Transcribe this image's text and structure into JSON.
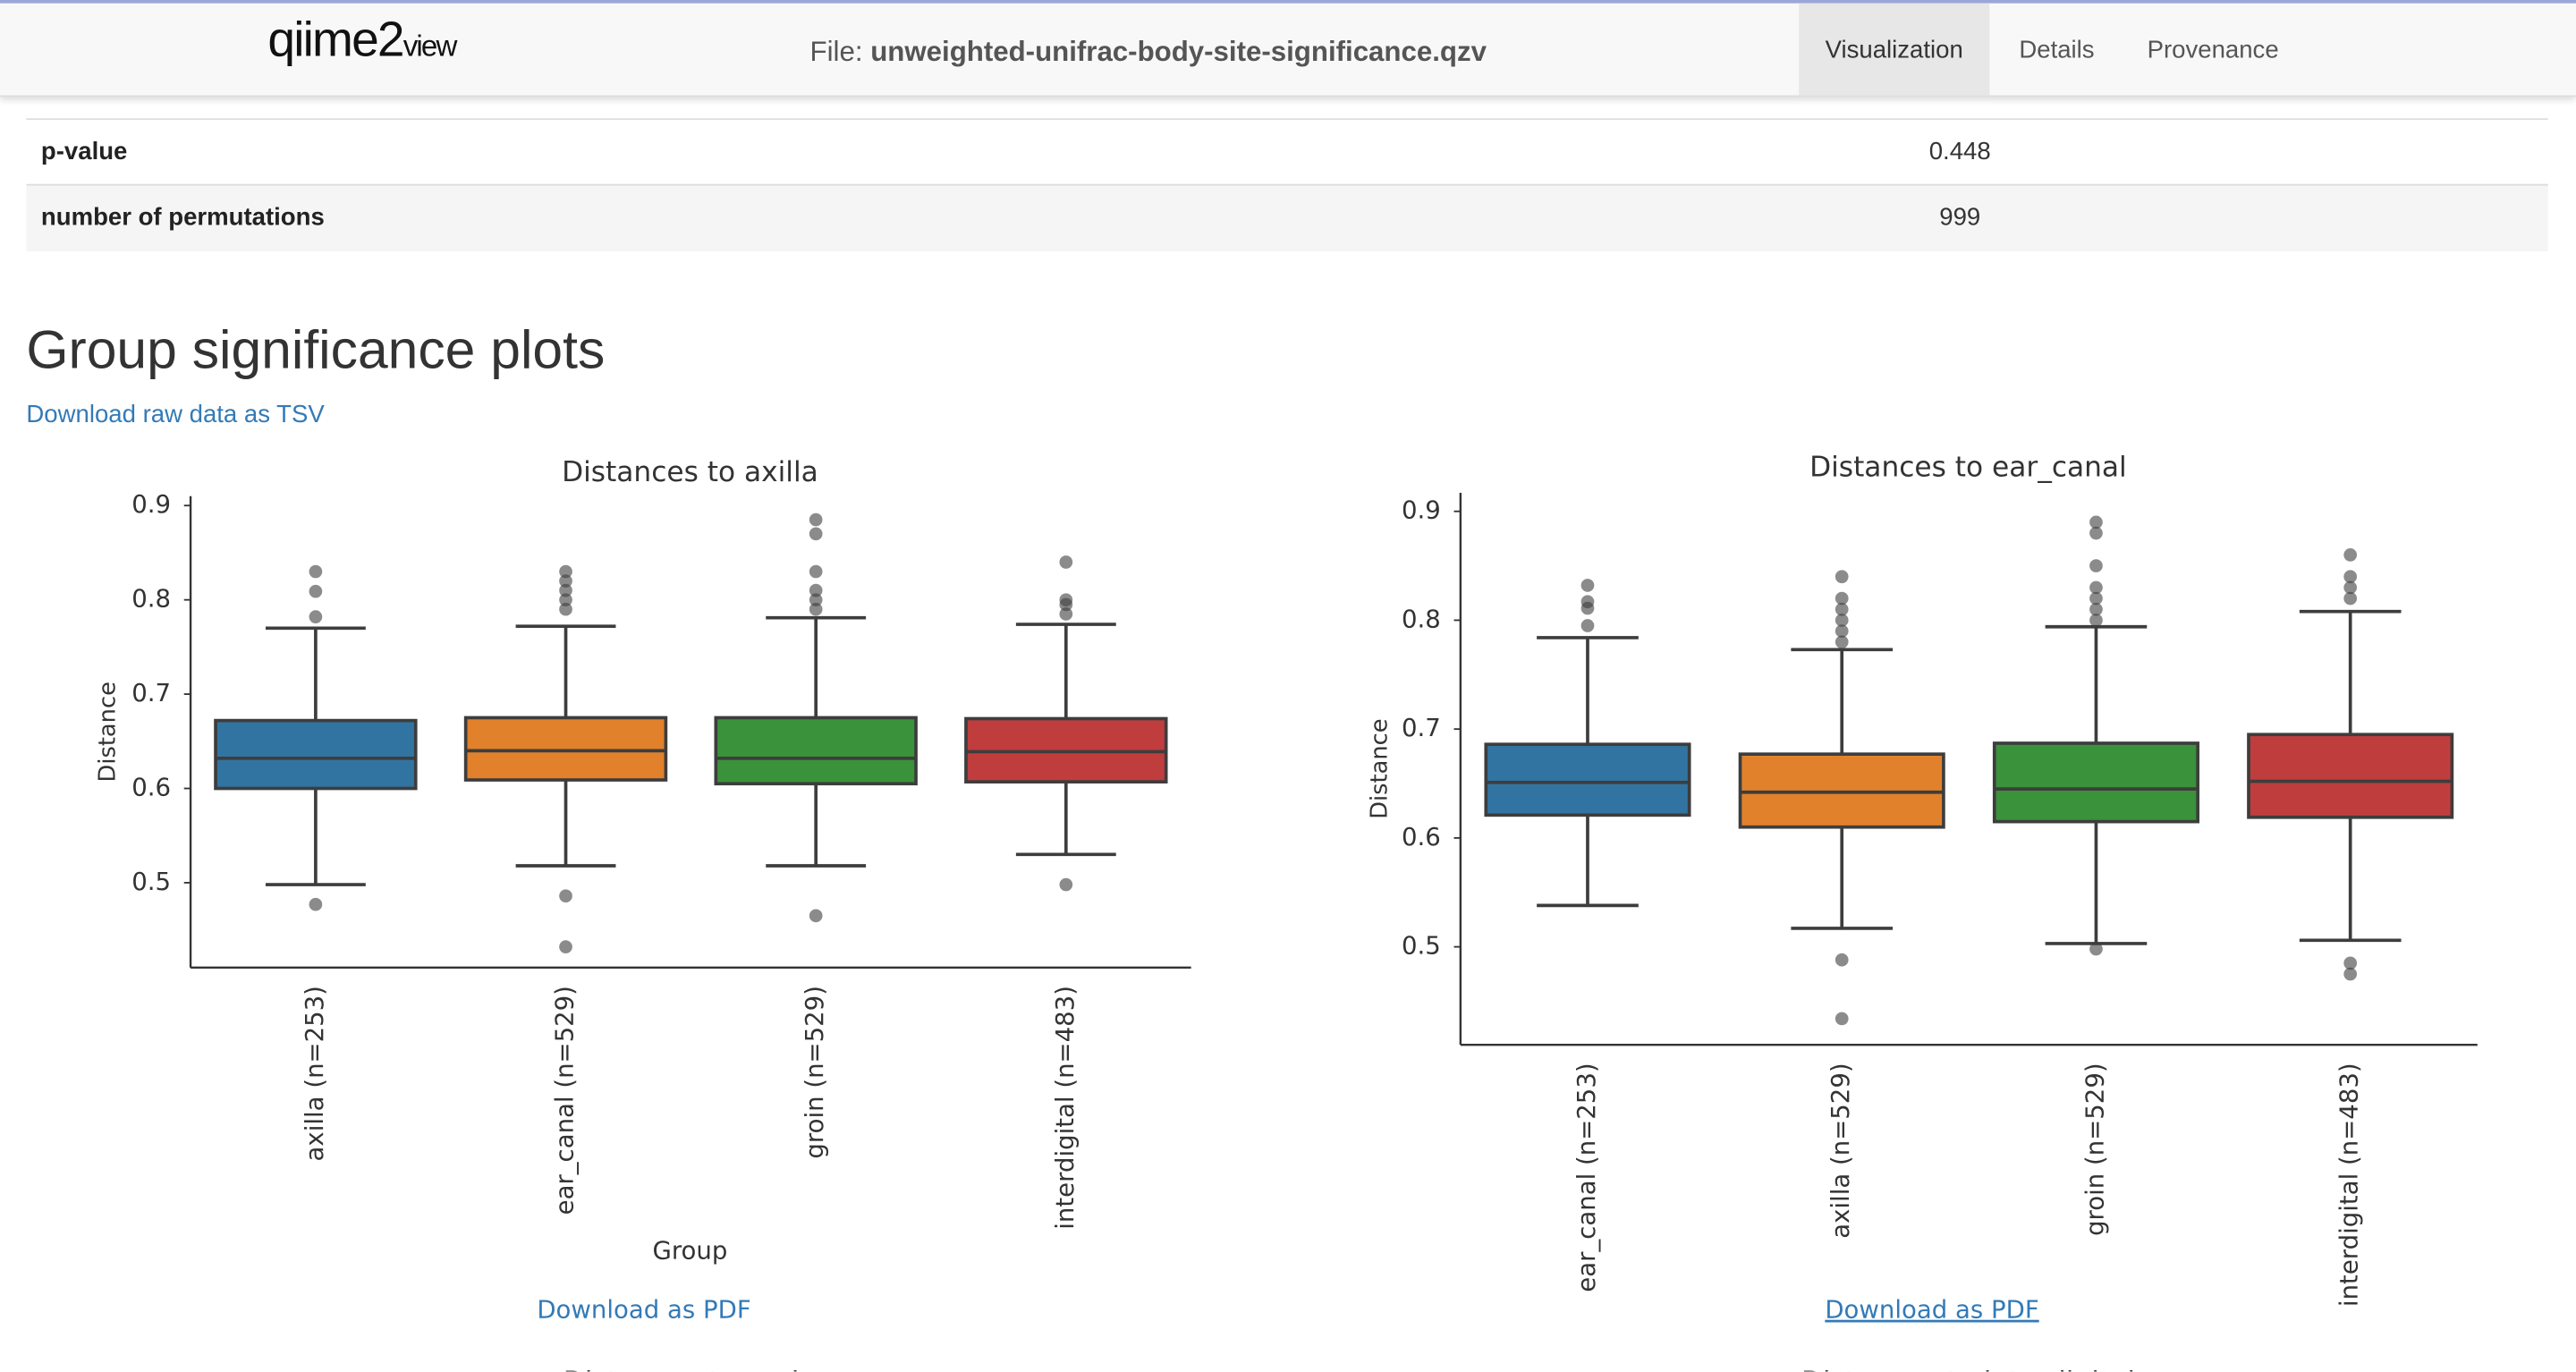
{
  "header": {
    "logo": "qiime2",
    "logo_suffix": "view",
    "file_label": "File:",
    "file_name": "unweighted-unifrac-body-site-significance.qzv",
    "tabs": [
      "Visualization",
      "Details",
      "Provenance"
    ]
  },
  "table": {
    "rows": [
      [
        "p-value",
        "0.448"
      ],
      [
        "number of permutations",
        "999"
      ]
    ]
  },
  "section": {
    "title": "Group significance plots",
    "download": "Download raw data as TSV"
  },
  "pdf_links": [
    "Download as PDF",
    "Download as PDF"
  ],
  "next_titles": [
    "Distances to groin",
    "Distances to interdigital"
  ],
  "chart_data": [
    {
      "type": "box",
      "title": "Distances to axilla",
      "ylabel": "Distance",
      "xlabel": "Group",
      "categories": [
        "axilla (n=253)",
        "ear_canal (n=529)",
        "groin (n=529)",
        "interdigital (n=483)"
      ],
      "colors": [
        "#3274a1",
        "#e1812c",
        "#3a923a",
        "#c03d3e"
      ],
      "whislo": [
        0.498,
        0.518,
        0.518,
        0.53
      ],
      "q1": [
        0.6,
        0.609,
        0.605,
        0.607
      ],
      "median": [
        0.632,
        0.64,
        0.632,
        0.639
      ],
      "q3": [
        0.672,
        0.675,
        0.675,
        0.674
      ],
      "whishi": [
        0.77,
        0.772,
        0.781,
        0.774
      ],
      "fliers": [
        [
          0.477,
          0.782,
          0.809,
          0.83
        ],
        [
          0.486,
          0.432,
          0.79,
          0.8,
          0.81,
          0.82,
          0.83
        ],
        [
          0.465,
          0.79,
          0.8,
          0.81,
          0.83,
          0.87,
          0.885
        ],
        [
          0.498,
          0.785,
          0.795,
          0.8,
          0.84
        ]
      ],
      "ylim": [
        0.41,
        0.91
      ],
      "yticks": [
        0.5,
        0.6,
        0.7,
        0.8,
        0.9
      ]
    },
    {
      "type": "box",
      "title": "Distances to ear_canal",
      "ylabel": "Distance",
      "categories": [
        "ear_canal (n=253)",
        "axilla (n=529)",
        "groin (n=529)",
        "interdigital (n=483)"
      ],
      "colors": [
        "#3274a1",
        "#e1812c",
        "#3a923a",
        "#c03d3e"
      ],
      "whislo": [
        0.538,
        0.517,
        0.503,
        0.506
      ],
      "q1": [
        0.621,
        0.61,
        0.615,
        0.619
      ],
      "median": [
        0.651,
        0.642,
        0.645,
        0.652
      ],
      "q3": [
        0.686,
        0.677,
        0.687,
        0.695
      ],
      "whishi": [
        0.784,
        0.773,
        0.794,
        0.808
      ],
      "fliers": [
        [
          0.795,
          0.811,
          0.817,
          0.832
        ],
        [
          0.488,
          0.434,
          0.78,
          0.79,
          0.8,
          0.81,
          0.82,
          0.84
        ],
        [
          0.498,
          0.8,
          0.81,
          0.82,
          0.83,
          0.85,
          0.88,
          0.89
        ],
        [
          0.485,
          0.475,
          0.82,
          0.83,
          0.84,
          0.86
        ]
      ],
      "ylim": [
        0.41,
        0.917
      ],
      "yticks": [
        0.5,
        0.6,
        0.7,
        0.8,
        0.9
      ]
    }
  ]
}
